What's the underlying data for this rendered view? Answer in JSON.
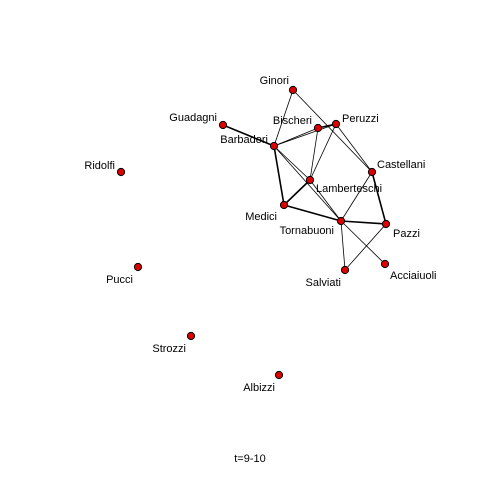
{
  "caption": "t=9-10",
  "colors": {
    "node_fill": "#dd0000",
    "node_stroke": "#000000",
    "edge": "#000000",
    "background": "#ffffff"
  },
  "nodes": [
    {
      "id": "ginori",
      "label": "Ginori"
    },
    {
      "id": "guadagni",
      "label": "Guadagni"
    },
    {
      "id": "bischeri",
      "label": "Bischeri"
    },
    {
      "id": "peruzzi",
      "label": "Peruzzi"
    },
    {
      "id": "barbadori",
      "label": "Barbadori"
    },
    {
      "id": "ridolfi",
      "label": "Ridolfi"
    },
    {
      "id": "castellani",
      "label": "Castellani"
    },
    {
      "id": "lamberteschi",
      "label": "Lamberteschi"
    },
    {
      "id": "medici",
      "label": "Medici"
    },
    {
      "id": "tornabuoni",
      "label": "Tornabuoni"
    },
    {
      "id": "pazzi",
      "label": "Pazzi"
    },
    {
      "id": "pucci",
      "label": "Pucci"
    },
    {
      "id": "salviati",
      "label": "Salviati"
    },
    {
      "id": "acciaiuoli",
      "label": "Acciaiuoli"
    },
    {
      "id": "strozzi",
      "label": "Strozzi"
    },
    {
      "id": "albizzi",
      "label": "Albizzi"
    }
  ],
  "edges": [
    {
      "source": "ginori",
      "target": "barbadori",
      "weight": 1
    },
    {
      "source": "ginori",
      "target": "castellani",
      "weight": 1
    },
    {
      "source": "guadagni",
      "target": "barbadori",
      "weight": 2
    },
    {
      "source": "bischeri",
      "target": "peruzzi",
      "weight": 2
    },
    {
      "source": "bischeri",
      "target": "barbadori",
      "weight": 1
    },
    {
      "source": "bischeri",
      "target": "lamberteschi",
      "weight": 1
    },
    {
      "source": "peruzzi",
      "target": "barbadori",
      "weight": 1
    },
    {
      "source": "peruzzi",
      "target": "lamberteschi",
      "weight": 1
    },
    {
      "source": "peruzzi",
      "target": "castellani",
      "weight": 1
    },
    {
      "source": "barbadori",
      "target": "medici",
      "weight": 2
    },
    {
      "source": "barbadori",
      "target": "lamberteschi",
      "weight": 1
    },
    {
      "source": "barbadori",
      "target": "tornabuoni",
      "weight": 1
    },
    {
      "source": "lamberteschi",
      "target": "medici",
      "weight": 2
    },
    {
      "source": "lamberteschi",
      "target": "tornabuoni",
      "weight": 1
    },
    {
      "source": "medici",
      "target": "tornabuoni",
      "weight": 2
    },
    {
      "source": "castellani",
      "target": "tornabuoni",
      "weight": 1
    },
    {
      "source": "castellani",
      "target": "pazzi",
      "weight": 2
    },
    {
      "source": "tornabuoni",
      "target": "pazzi",
      "weight": 2
    },
    {
      "source": "tornabuoni",
      "target": "salviati",
      "weight": 1
    },
    {
      "source": "tornabuoni",
      "target": "acciaiuoli",
      "weight": 1
    },
    {
      "source": "pazzi",
      "target": "salviati",
      "weight": 1
    }
  ]
}
